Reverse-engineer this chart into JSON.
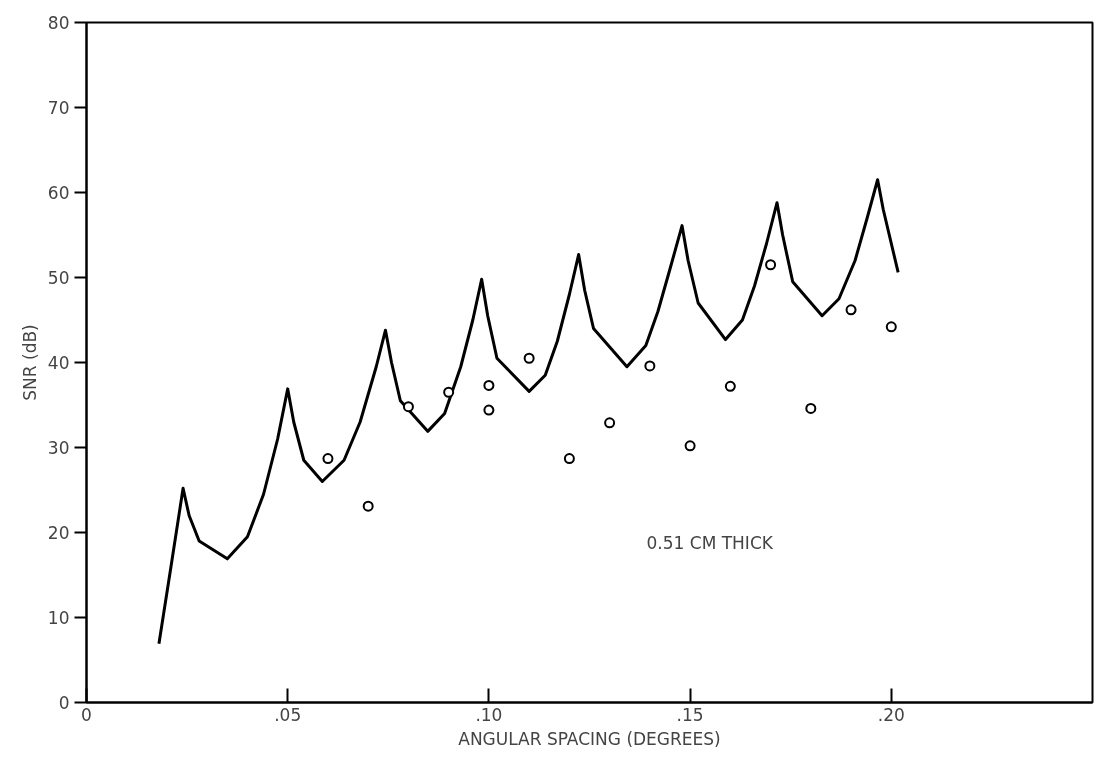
{
  "chart_data": {
    "type": "line",
    "xlabel": "ANGULAR SPACING (DEGREES)",
    "ylabel": "SNR (dB)",
    "xlim": [
      0,
      0.25
    ],
    "ylim": [
      0,
      80
    ],
    "xticks": [
      {
        "value": 0,
        "label": "0"
      },
      {
        "value": 0.05,
        "label": ".05"
      },
      {
        "value": 0.1,
        "label": ".10"
      },
      {
        "value": 0.15,
        "label": ".15"
      },
      {
        "value": 0.2,
        "label": ".20"
      }
    ],
    "yticks": [
      0,
      10,
      20,
      30,
      40,
      50,
      60,
      70,
      80
    ],
    "grid": false,
    "annotations": [
      "0.51 CM THICK"
    ],
    "series": [
      {
        "color": "#000000",
        "line_style": "solid",
        "x": [
          0.018,
          0.021,
          0.024,
          0.0255,
          0.028,
          0.035,
          0.04,
          0.044,
          0.0475,
          0.05,
          0.0515,
          0.054,
          0.0586,
          0.064,
          0.068,
          0.072,
          0.0743,
          0.0758,
          0.078,
          0.0848,
          0.089,
          0.093,
          0.096,
          0.0982,
          0.0997,
          0.102,
          0.11,
          0.114,
          0.117,
          0.12,
          0.1223,
          0.1238,
          0.126,
          0.1343,
          0.139,
          0.142,
          0.145,
          0.148,
          0.1495,
          0.152,
          0.1588,
          0.163,
          0.166,
          0.169,
          0.1716,
          0.173,
          0.1755,
          0.1828,
          0.187,
          0.191,
          0.194,
          0.1966,
          0.198,
          0.2017
        ],
        "values": [
          6.9,
          16,
          25.2,
          22,
          19,
          16.9,
          19.5,
          24.5,
          31,
          36.9,
          33,
          28.5,
          26,
          28.5,
          33,
          39.5,
          43.8,
          40,
          35.5,
          31.9,
          34,
          39.5,
          45,
          49.8,
          45.5,
          40.5,
          36.6,
          38.5,
          42.5,
          48,
          52.7,
          48.5,
          44,
          39.5,
          42,
          46,
          51,
          56.1,
          52,
          47,
          42.7,
          45,
          49,
          54,
          58.8,
          55,
          49.5,
          45.5,
          47.5,
          52,
          57,
          61.5,
          58,
          50.6
        ]
      },
      {
        "type": "scatter",
        "color": "#000000",
        "marker": "circle",
        "x": [
          0.06,
          0.07,
          0.08,
          0.09,
          0.1,
          0.1,
          0.11,
          0.12,
          0.13,
          0.14,
          0.15,
          0.16,
          0.17,
          0.18,
          0.19,
          0.2
        ],
        "values": [
          28.7,
          23.1,
          34.8,
          36.5,
          37.3,
          34.4,
          40.5,
          28.7,
          32.9,
          39.6,
          30.2,
          37.2,
          51.5,
          34.6,
          46.2,
          44.2
        ]
      }
    ]
  }
}
